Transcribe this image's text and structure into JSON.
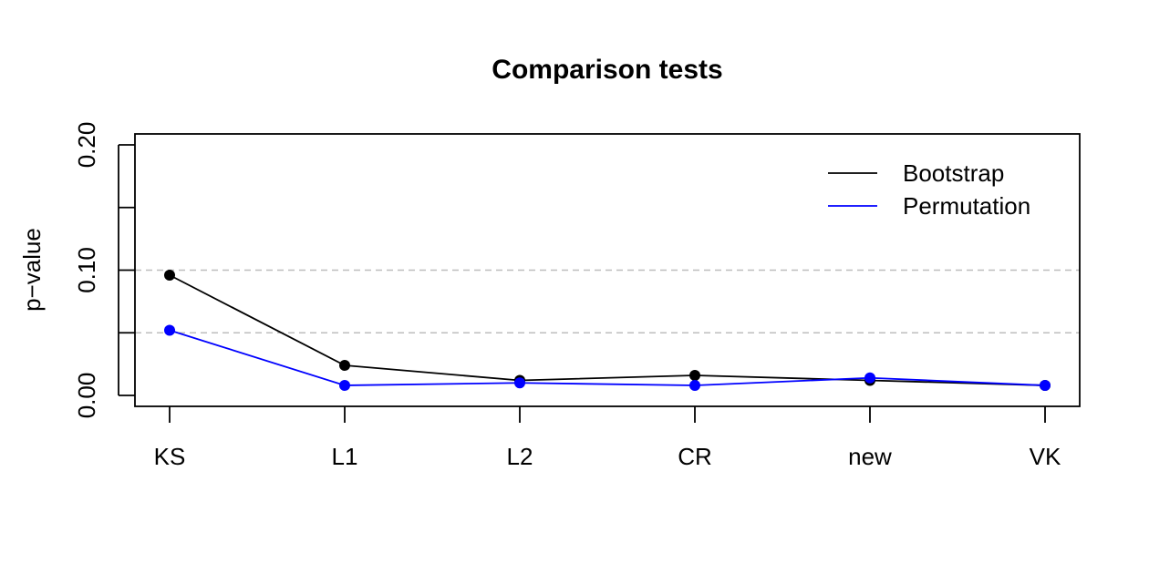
{
  "chart_data": {
    "type": "line",
    "title": "Comparison tests",
    "xlabel": "",
    "ylabel": "p−value",
    "categories": [
      "KS",
      "L1",
      "L2",
      "CR",
      "new",
      "VK"
    ],
    "ylim": [
      0,
      0.2
    ],
    "yticks": [
      0.0,
      0.05,
      0.1,
      0.15,
      0.2
    ],
    "ytick_labels": [
      "0.00",
      "",
      "0.10",
      "",
      "0.20"
    ],
    "reference_lines": [
      0.05,
      0.1
    ],
    "grid": false,
    "legend_position": "top-right",
    "series": [
      {
        "name": "Bootstrap",
        "color": "#000000",
        "values": [
          0.096,
          0.024,
          0.012,
          0.016,
          0.012,
          0.008
        ]
      },
      {
        "name": "Permutation",
        "color": "#0000ff",
        "values": [
          0.052,
          0.008,
          0.01,
          0.008,
          0.014,
          0.008
        ]
      }
    ]
  }
}
